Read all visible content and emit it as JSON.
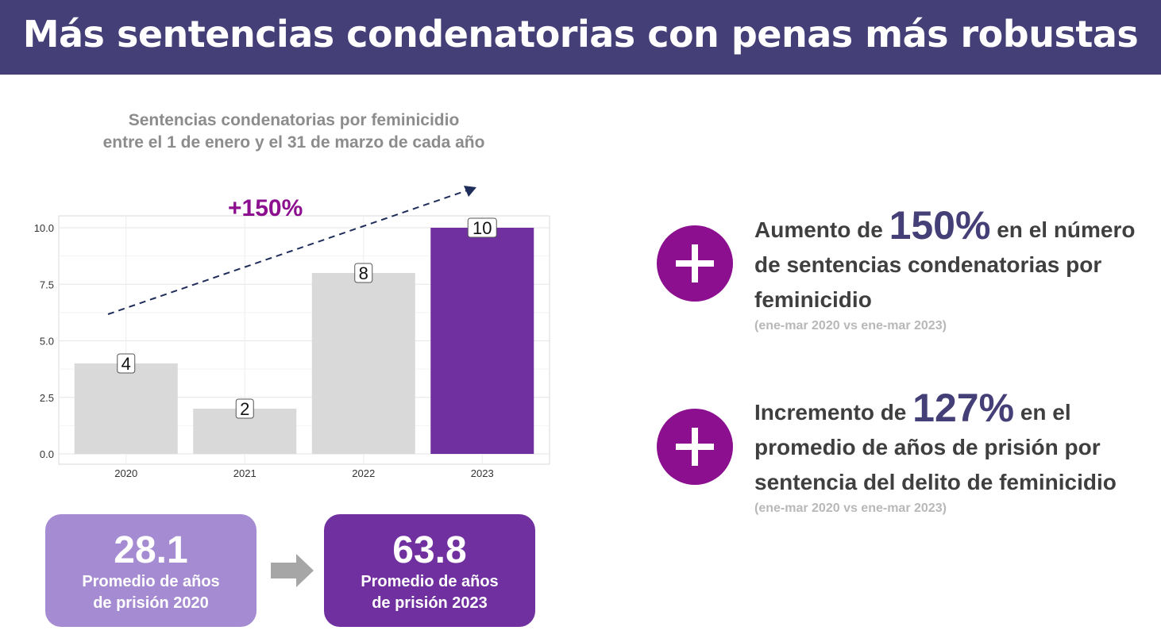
{
  "header": {
    "title": "Más sentencias condenatorias con penas más robustas"
  },
  "chart_title": {
    "line1": "Sentencias condenatorias por feminicidio",
    "line2": "entre el 1 de enero y el 31 de marzo de cada año"
  },
  "growth_label": "+150%",
  "colors": {
    "header_bg": "#453f77",
    "accent_purple": "#7030a0",
    "bar_grey": "#d9d9d9",
    "plus_magenta": "#8b0f8f",
    "box_light": "#a58bd1"
  },
  "chart_data": {
    "type": "bar",
    "categories": [
      "2020",
      "2021",
      "2022",
      "2023"
    ],
    "values": [
      4,
      2,
      8,
      10
    ],
    "data_labels": [
      "4",
      "2",
      "8",
      "10"
    ],
    "highlight_category": "2023",
    "ylim": [
      0,
      10.4
    ],
    "yticks": [
      "0.0",
      "2.5",
      "5.0",
      "7.5",
      "10.0"
    ],
    "grid": true,
    "trend_arrow": "dashed, rising from 2020 to 2023",
    "title": "Sentencias condenatorias por feminicidio entre el 1 de enero y el 31 de marzo de cada año"
  },
  "stats": {
    "y2020": {
      "value": "28.1",
      "caption_line1": "Promedio de años",
      "caption_line2": "de prisión 2020"
    },
    "y2023": {
      "value": "63.8",
      "caption_line1": "Promedio de años",
      "caption_line2": "de prisión 2023"
    },
    "arrow_icon": "arrow-right-icon"
  },
  "facts": [
    {
      "icon": "plus-icon",
      "pre": "Aumento de ",
      "big": "150%",
      "post": " en el número",
      "line2": "de sentencias condenatorias por",
      "line3": "feminicidio",
      "note": "(ene-mar  2020 vs ene-mar 2023)"
    },
    {
      "icon": "plus-icon",
      "pre": "Incremento de ",
      "big": "127%",
      "post": " en el",
      "line2": "promedio de años de prisión por",
      "line3": "sentencia del delito de feminicidio",
      "note": "(ene-mar  2020 vs ene-mar 2023)"
    }
  ]
}
